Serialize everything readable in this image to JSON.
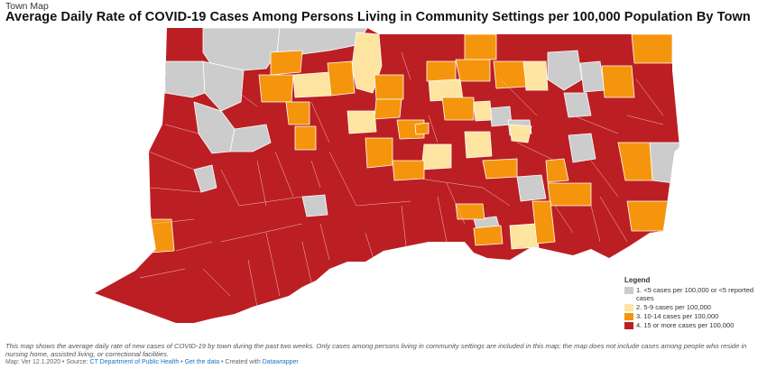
{
  "header": {
    "kicker": "Town Map",
    "title": "Average Daily Rate of COVID-19 Cases Among Persons Living in Community Settings per 100,000 Population By Town"
  },
  "legend": {
    "title": "Legend",
    "items": [
      {
        "label": "1. <5 cases per 100,000 or <5 reported cases",
        "color": "#cccccc"
      },
      {
        "label": "2. 5-9 cases per 100,000",
        "color": "#fde4a0"
      },
      {
        "label": "3. 10-14 cases per 100,000",
        "color": "#f5950d"
      },
      {
        "label": "4. 15 or more cases per 100,000",
        "color": "#bb1f23"
      }
    ]
  },
  "caption": "This map shows the average daily rate of new cases of COVID-19 by town during the past two weeks. Only cases among persons living in community settings are included in this map; the map does not include cases among people who reside in nursing home, assisted living, or correctional facilities.",
  "footer": {
    "prefix": "Map: Ver 12.1.2020 • Source: ",
    "source": "CT Department of Public Health",
    "sep1": " • ",
    "get_data": "Get the data",
    "sep2": " • Created with ",
    "tool": "Datawrapper"
  }
}
